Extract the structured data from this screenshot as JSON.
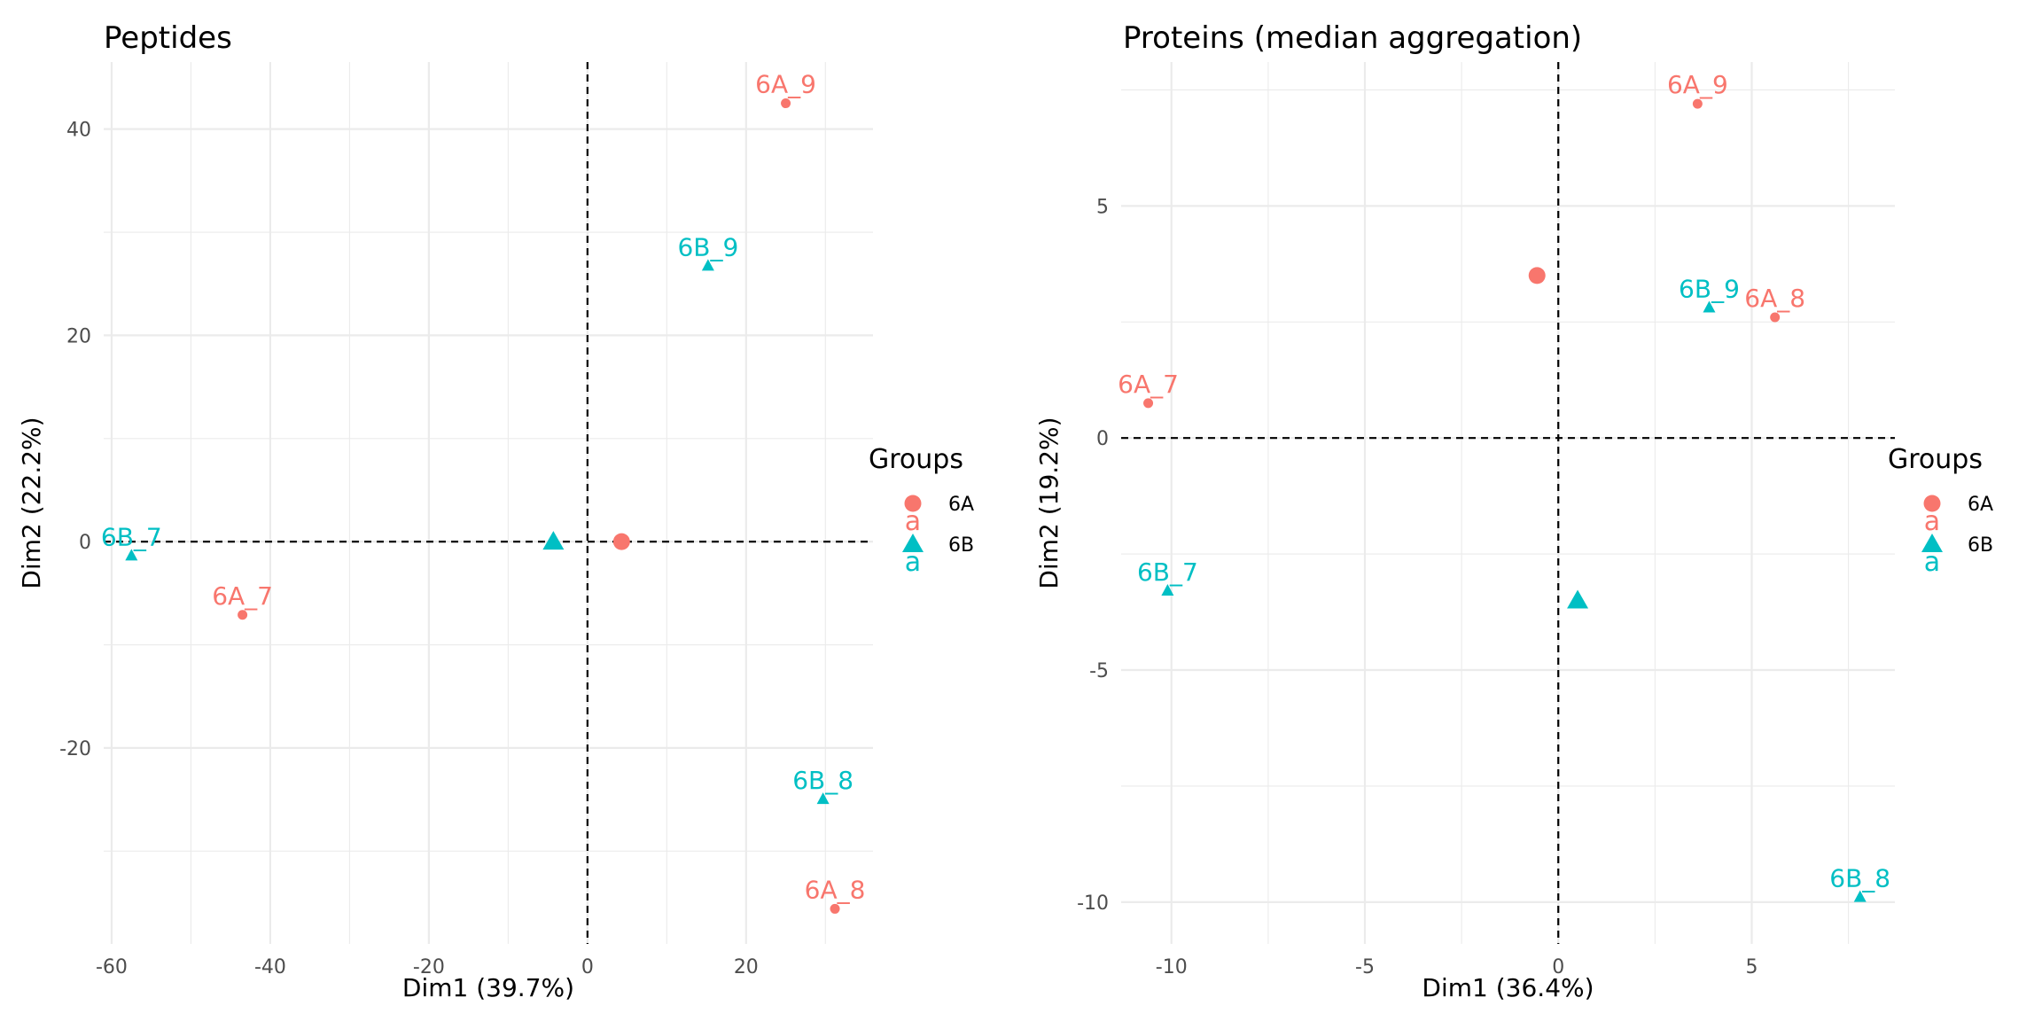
{
  "colors": {
    "6A": "#F8766D",
    "6B": "#00BFC4"
  },
  "legend": {
    "title": "Groups",
    "entries": [
      {
        "group": "6A",
        "label": "6A",
        "shape": "circle",
        "key_glyph": "a"
      },
      {
        "group": "6B",
        "label": "6B",
        "shape": "triangle",
        "key_glyph": "a"
      }
    ]
  },
  "chart_data": [
    {
      "type": "scatter",
      "title": "Peptides",
      "xlabel": "Dim1 (39.7%)",
      "ylabel": "Dim2 (22.2%)",
      "xlim": [
        -61,
        36
      ],
      "ylim": [
        -39,
        46.5
      ],
      "x_ticks": [
        -60,
        -40,
        -20,
        0,
        20
      ],
      "y_ticks": [
        -20,
        0,
        20,
        40
      ],
      "reference_lines": {
        "x": 0,
        "y": 0,
        "style": "dashed"
      },
      "grid": true,
      "points": [
        {
          "label": "6A_9",
          "group": "6A",
          "x": 25.0,
          "y": 42.5
        },
        {
          "label": "6B_9",
          "group": "6B",
          "x": 15.2,
          "y": 26.7
        },
        {
          "label": "6B_7",
          "group": "6B",
          "x": -57.5,
          "y": -1.4
        },
        {
          "label": "6A_7",
          "group": "6A",
          "x": -43.5,
          "y": -7.1
        },
        {
          "label": "6B_8",
          "group": "6B",
          "x": 29.7,
          "y": -25.0
        },
        {
          "label": "6A_8",
          "group": "6A",
          "x": 31.2,
          "y": -35.6
        }
      ],
      "centroids": [
        {
          "group": "6A",
          "x": 4.3,
          "y": 0
        },
        {
          "group": "6B",
          "x": -4.3,
          "y": 0
        }
      ]
    },
    {
      "type": "scatter",
      "title": "Proteins (median aggregation)",
      "xlabel": "Dim1 (36.4%)",
      "ylabel": "Dim2 (19.2%)",
      "xlim": [
        -11.3,
        8.7
      ],
      "ylim": [
        -10.9,
        8.1
      ],
      "x_ticks": [
        -10,
        -5,
        0,
        5
      ],
      "y_ticks": [
        -10,
        -5,
        0,
        5
      ],
      "reference_lines": {
        "x": 0,
        "y": 0,
        "style": "dashed"
      },
      "grid": true,
      "points": [
        {
          "label": "6A_9",
          "group": "6A",
          "x": 3.6,
          "y": 7.2
        },
        {
          "label": "6B_9",
          "group": "6B",
          "x": 3.9,
          "y": 2.8
        },
        {
          "label": "6A_8",
          "group": "6A",
          "x": 5.6,
          "y": 2.6
        },
        {
          "label": "6A_7",
          "group": "6A",
          "x": -10.6,
          "y": 0.75
        },
        {
          "label": "6B_7",
          "group": "6B",
          "x": -10.1,
          "y": -3.3
        },
        {
          "label": "6B_8",
          "group": "6B",
          "x": 7.8,
          "y": -9.9
        }
      ],
      "centroids": [
        {
          "group": "6A",
          "x": -0.55,
          "y": 3.5
        },
        {
          "group": "6B",
          "x": 0.5,
          "y": -3.5
        }
      ]
    }
  ]
}
